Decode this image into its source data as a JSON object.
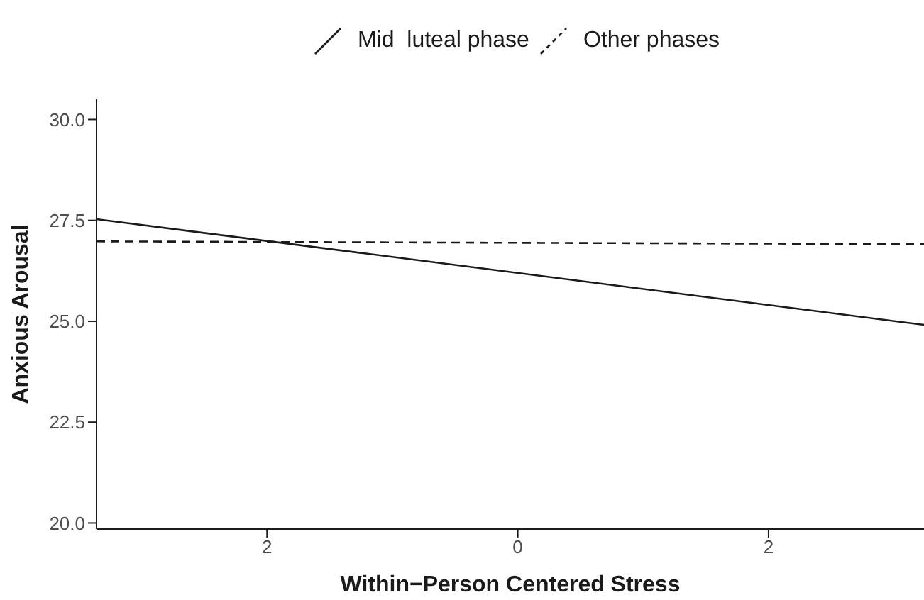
{
  "chart_data": {
    "type": "line",
    "xlabel": "Within−Person Centered Stress",
    "ylabel": "Anxious Arousal",
    "x": [
      -3.36,
      3.24
    ],
    "series": [
      {
        "name": "Mid  luteal phase",
        "color": "#1a1a1a",
        "values": [
          27.53,
          24.91
        ],
        "line_style": "solid"
      },
      {
        "name": "Other phases",
        "color": "#1a1a1a",
        "values": [
          26.98,
          26.91
        ],
        "line_style": "dashed"
      }
    ],
    "xlim": [
      -3.36,
      3.24
    ],
    "xticks": [
      {
        "value": -2,
        "label": "2"
      },
      0,
      2
    ],
    "ylim": [
      19.85,
      30.5
    ],
    "yticks": [
      {
        "value": 20,
        "label": "20.0"
      },
      22.5,
      {
        "value": 25,
        "label": "25.0"
      },
      27.5,
      {
        "value": 30,
        "label": "30.0"
      }
    ],
    "grid": false,
    "legend": "top",
    "marker": "none"
  }
}
